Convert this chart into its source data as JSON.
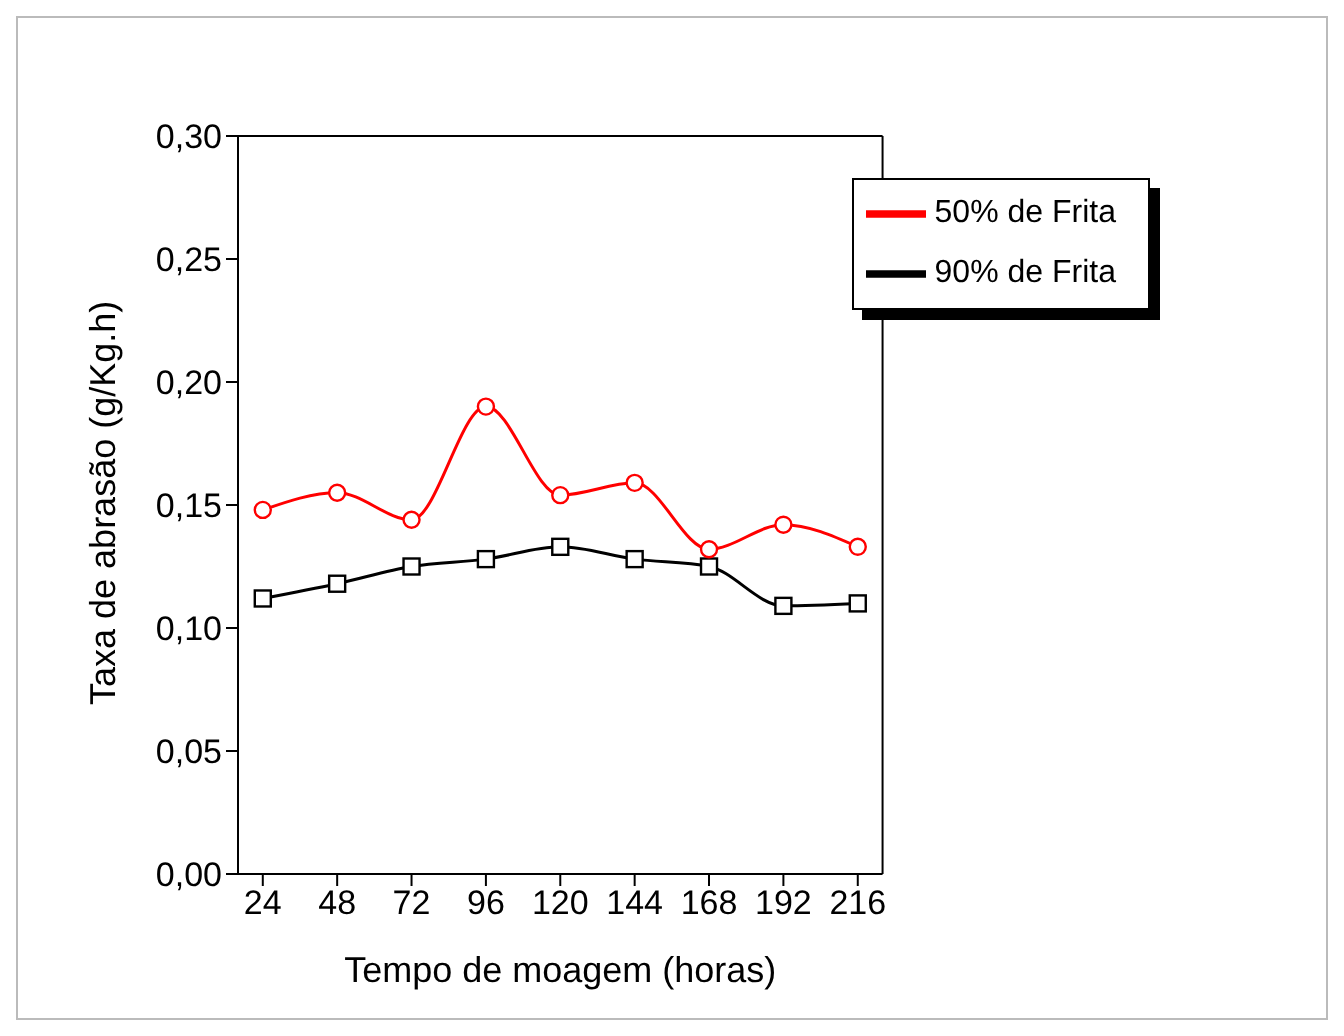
{
  "chart_data": {
    "type": "line",
    "xlabel": "Tempo de moagem (horas)",
    "ylabel": "Taxa de abrasão (g/Kg.h)",
    "x": [
      24,
      48,
      72,
      96,
      120,
      144,
      168,
      192,
      216
    ],
    "series": [
      {
        "name": "90% de Frita",
        "color": "#000000",
        "marker": "square",
        "values": [
          0.112,
          0.118,
          0.125,
          0.128,
          0.133,
          0.128,
          0.125,
          0.109,
          0.11
        ]
      },
      {
        "name": "50% de Frita",
        "color": "#ff0000",
        "marker": "circle",
        "values": [
          0.148,
          0.155,
          0.144,
          0.19,
          0.154,
          0.159,
          0.132,
          0.142,
          0.133
        ]
      }
    ],
    "xlim": [
      16,
      224
    ],
    "xticks": [
      24,
      48,
      72,
      96,
      120,
      144,
      168,
      192,
      216
    ],
    "ylim": [
      0,
      0.3
    ],
    "yticks": [
      {
        "value": 0,
        "label": "0,00"
      },
      {
        "value": 0.05,
        "label": "0,05"
      },
      {
        "value": 0.1,
        "label": "0,10"
      },
      {
        "value": 0.15,
        "label": "0,15"
      },
      {
        "value": 0.2,
        "label": "0,20"
      },
      {
        "value": 0.25,
        "label": "0,25"
      },
      {
        "value": 0.3,
        "label": "0,30"
      }
    ],
    "grid": false,
    "legend": "top right",
    "line_style": "solid"
  }
}
